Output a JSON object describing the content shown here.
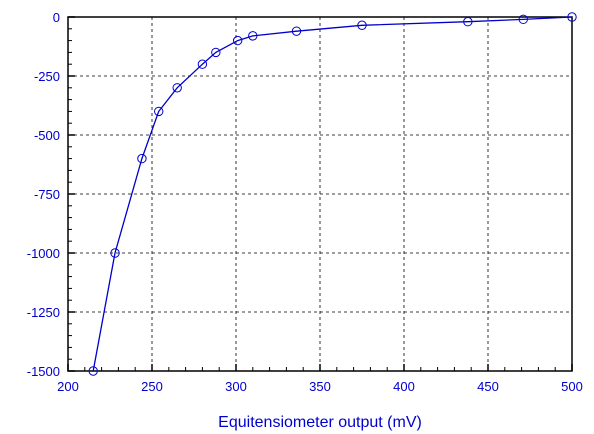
{
  "chart_data": {
    "type": "line",
    "title": "",
    "xlabel": "Equitensiometer output (mV)",
    "ylabel": "",
    "xlim": [
      200,
      500
    ],
    "ylim": [
      -1500,
      0
    ],
    "x_ticks": [
      200,
      250,
      300,
      350,
      400,
      450,
      500
    ],
    "y_ticks": [
      0,
      -250,
      -500,
      -750,
      -1000,
      -1250,
      -1500
    ],
    "grid": true,
    "marker": "circle",
    "colors": {
      "series": "#0000cc",
      "grid": "#000000",
      "axis": "#000000",
      "labels": "#0000cc"
    },
    "series": [
      {
        "x": [
          215,
          228,
          244,
          254,
          265,
          280,
          288,
          301,
          310,
          336,
          375,
          438,
          471,
          500
        ],
        "y": [
          -1500,
          -1000,
          -600,
          -400,
          -300,
          -200,
          -150,
          -100,
          -80,
          -60,
          -35,
          -20,
          -10,
          0
        ]
      }
    ]
  }
}
